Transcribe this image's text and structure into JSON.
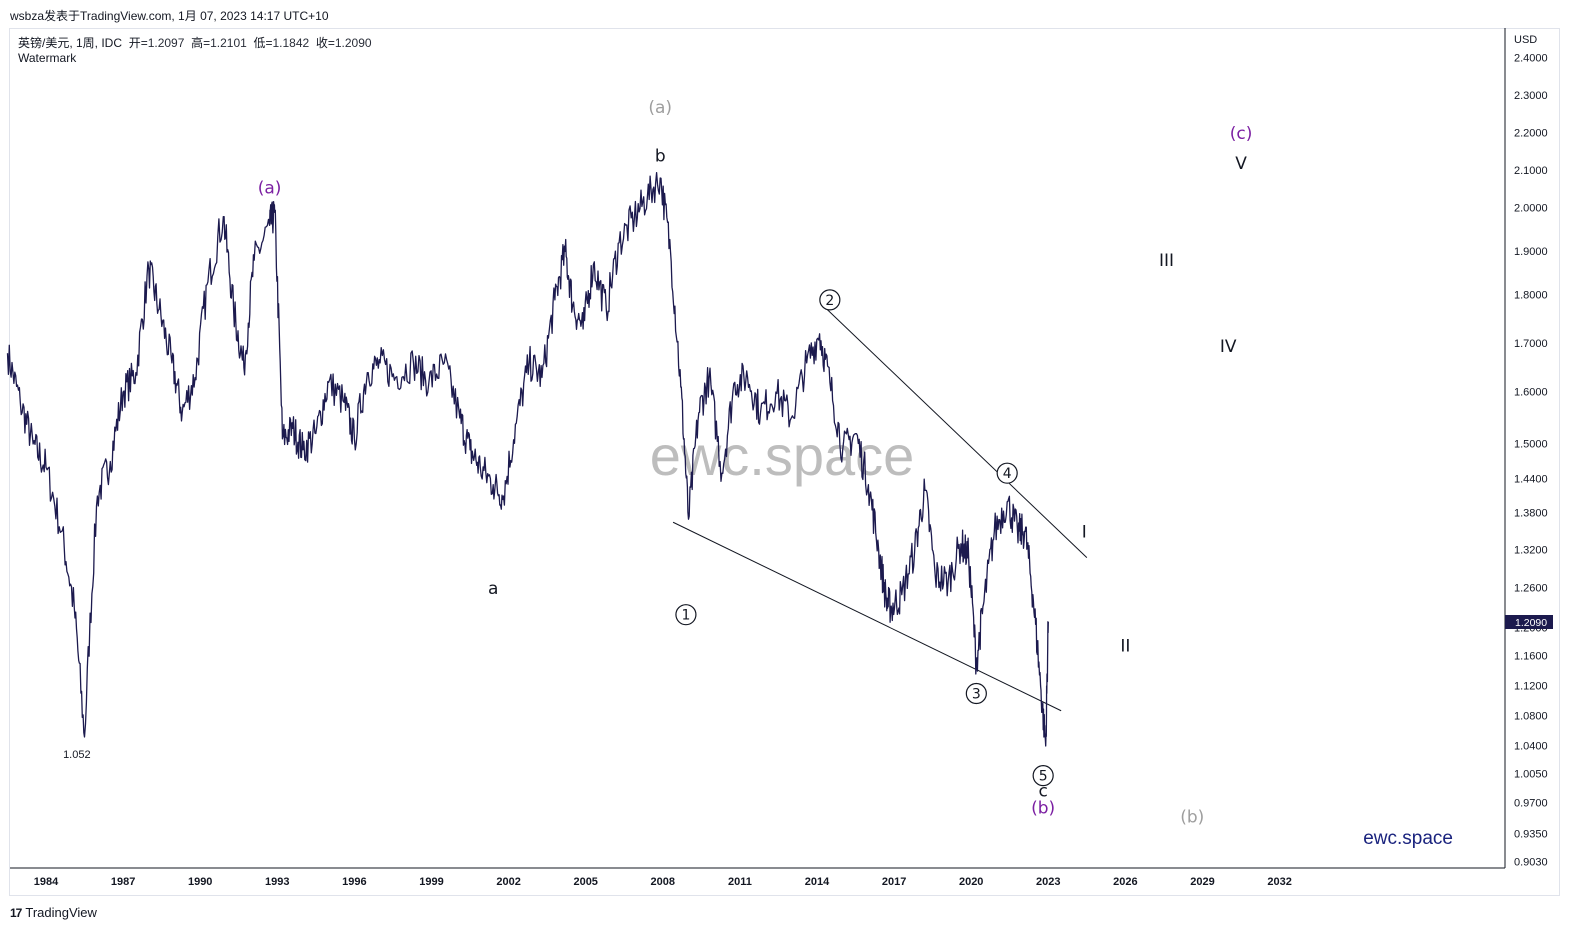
{
  "header": {
    "text": "wsbza发表于TradingView.com, 1月 07, 2023 14:17 UTC+10"
  },
  "symbol": {
    "name": "英镑/美元, 1周, IDC",
    "open_label": "开=",
    "open": "1.2097",
    "high_label": "高=",
    "high": "1.2101",
    "low_label": "低=",
    "low": "1.1842",
    "close_label": "收=",
    "close": "1.2090"
  },
  "watermark_label": "Watermark",
  "center_watermark": "ewc.space",
  "brand": "ewc.space",
  "footer": {
    "logo_text": "TradingView",
    "logo_mark": "17"
  },
  "colors": {
    "price_line": "#1c1a4e",
    "purple": "#7b1fa2",
    "gray": "#9e9e9e",
    "black": "#131722",
    "brand": "#1a237e",
    "current_price_badge": "#1c1a4e"
  },
  "chart_data": {
    "type": "line",
    "currency": "USD",
    "current_price": "1.2090",
    "min_label": "1.052",
    "x_ticks": [
      "1984",
      "1987",
      "1990",
      "1993",
      "1996",
      "1999",
      "2002",
      "2005",
      "2008",
      "2011",
      "2014",
      "2017",
      "2020",
      "2023",
      "2026",
      "2029",
      "2032"
    ],
    "y_ticks": [
      "2.4000",
      "2.3000",
      "2.2000",
      "2.1000",
      "2.0000",
      "1.9000",
      "1.8000",
      "1.7000",
      "1.6000",
      "1.5000",
      "1.4400",
      "1.3800",
      "1.3200",
      "1.2600",
      "1.2000",
      "1.1600",
      "1.1200",
      "1.0800",
      "1.0400",
      "1.0050",
      "0.9700",
      "0.9350",
      "0.9030"
    ],
    "series": [
      {
        "x": [
          1982.5,
          1983.0,
          1983.5,
          1984.0,
          1984.6,
          1985.1,
          1985.5,
          1986.0,
          1986.5,
          1987.0,
          1987.5,
          1988.0,
          1988.4,
          1988.9,
          1989.3,
          1989.8,
          1990.3,
          1990.9,
          1991.3,
          1991.7,
          1992.1,
          1992.7,
          1992.9,
          1993.2,
          1993.6,
          1994.0,
          1994.5,
          1995.0,
          1995.6,
          1996.0,
          1996.5,
          1997.0,
          1997.6,
          1998.3,
          1998.9,
          1999.5,
          2000.1,
          2000.5,
          2000.9,
          2001.4,
          2001.8,
          2002.3,
          2002.8,
          2003.3,
          2003.8,
          2004.2,
          2004.5,
          2004.9,
          2005.3,
          2005.8,
          2006.3,
          2006.9,
          2007.4,
          2007.9,
          2008.3,
          2008.7,
          2009.0,
          2009.4,
          2009.8,
          2010.3,
          2010.8,
          2011.3,
          2011.8,
          2012.4,
          2013.0,
          2013.6,
          2014.1,
          2014.5,
          2015.0,
          2015.5,
          2016.0,
          2016.4,
          2016.7,
          2016.9,
          2017.3,
          2017.8,
          2018.2,
          2018.6,
          2019.1,
          2019.6,
          2019.9,
          2020.2,
          2020.5,
          2020.9,
          2021.4,
          2021.8,
          2022.1,
          2022.4,
          2022.7,
          2022.9,
          2023.0
        ],
        "y": [
          1.68,
          1.58,
          1.5,
          1.46,
          1.35,
          1.23,
          1.052,
          1.41,
          1.47,
          1.6,
          1.64,
          1.86,
          1.77,
          1.66,
          1.56,
          1.63,
          1.83,
          1.98,
          1.77,
          1.65,
          1.88,
          1.96,
          1.99,
          1.51,
          1.53,
          1.49,
          1.52,
          1.62,
          1.58,
          1.51,
          1.64,
          1.66,
          1.63,
          1.66,
          1.62,
          1.66,
          1.55,
          1.49,
          1.46,
          1.43,
          1.41,
          1.54,
          1.66,
          1.63,
          1.79,
          1.9,
          1.78,
          1.73,
          1.87,
          1.77,
          1.92,
          1.98,
          2.03,
          2.08,
          1.9,
          1.61,
          1.37,
          1.56,
          1.63,
          1.45,
          1.62,
          1.63,
          1.56,
          1.6,
          1.55,
          1.66,
          1.72,
          1.62,
          1.49,
          1.52,
          1.43,
          1.32,
          1.24,
          1.23,
          1.25,
          1.32,
          1.42,
          1.28,
          1.27,
          1.33,
          1.31,
          1.15,
          1.24,
          1.35,
          1.4,
          1.35,
          1.35,
          1.25,
          1.12,
          1.04,
          1.209
        ]
      }
    ],
    "trendlines": [
      {
        "x": [
          2014.3,
          2024.5
        ],
        "y": [
          1.775,
          1.308
        ]
      },
      {
        "x": [
          2008.4,
          2023.5
        ],
        "y": [
          1.365,
          1.087
        ]
      }
    ],
    "annotations": [
      {
        "text": "(a)",
        "x": 1992.7,
        "y": 2.055,
        "color": "purple"
      },
      {
        "text": "(a)",
        "x": 2007.9,
        "y": 2.27,
        "color": "gray"
      },
      {
        "text": "b",
        "x": 2007.9,
        "y": 2.14,
        "color": "black"
      },
      {
        "text": "a",
        "x": 2001.4,
        "y": 1.26,
        "color": "black"
      },
      {
        "text": "1",
        "x": 2008.9,
        "y": 1.22,
        "color": "black",
        "circle": true
      },
      {
        "text": "2",
        "x": 2014.5,
        "y": 1.79,
        "color": "black",
        "circle": true
      },
      {
        "text": "3",
        "x": 2020.2,
        "y": 1.11,
        "color": "black",
        "circle": true
      },
      {
        "text": "4",
        "x": 2021.4,
        "y": 1.45,
        "color": "black",
        "circle": true
      },
      {
        "text": "5",
        "x": 2022.8,
        "y": 1.003,
        "color": "black",
        "circle": true
      },
      {
        "text": "c",
        "x": 2022.8,
        "y": 0.985,
        "color": "black"
      },
      {
        "text": "(b)",
        "x": 2022.8,
        "y": 0.965,
        "color": "purple"
      },
      {
        "text": "(b)",
        "x": 2028.6,
        "y": 0.955,
        "color": "gray"
      },
      {
        "text": "I",
        "x": 2024.4,
        "y": 1.35,
        "color": "black"
      },
      {
        "text": "II",
        "x": 2026.0,
        "y": 1.175,
        "color": "black"
      },
      {
        "text": "III",
        "x": 2027.6,
        "y": 1.88,
        "color": "black"
      },
      {
        "text": "IV",
        "x": 2030.0,
        "y": 1.695,
        "color": "black"
      },
      {
        "text": "V",
        "x": 2030.5,
        "y": 2.12,
        "color": "black"
      },
      {
        "text": "(c)",
        "x": 2030.5,
        "y": 2.2,
        "color": "purple"
      }
    ]
  }
}
